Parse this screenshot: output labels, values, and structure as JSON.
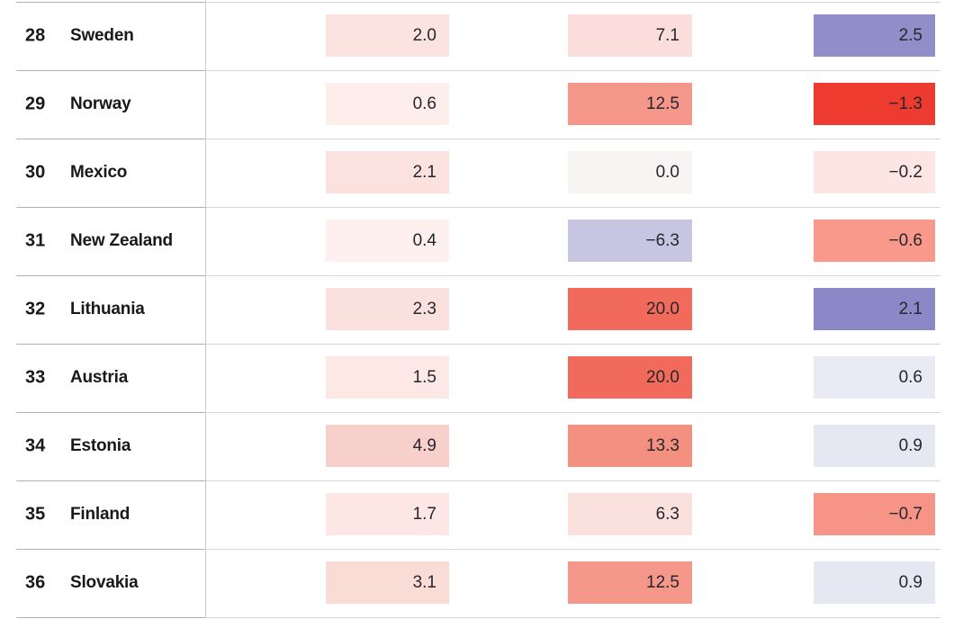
{
  "chart_data": {
    "type": "heatmap",
    "title": "",
    "note_columns": [
      "",
      "",
      ""
    ],
    "rows": [
      {
        "rank": 28,
        "country": "Sweden",
        "values": [
          2.0,
          7.1,
          2.5
        ]
      },
      {
        "rank": 29,
        "country": "Norway",
        "values": [
          0.6,
          12.5,
          -1.3
        ]
      },
      {
        "rank": 30,
        "country": "Mexico",
        "values": [
          2.1,
          0.0,
          -0.2
        ]
      },
      {
        "rank": 31,
        "country": "New Zealand",
        "values": [
          0.4,
          -6.3,
          -0.6
        ]
      },
      {
        "rank": 32,
        "country": "Lithuania",
        "values": [
          2.3,
          20.0,
          2.1
        ]
      },
      {
        "rank": 33,
        "country": "Austria",
        "values": [
          1.5,
          20.0,
          0.6
        ]
      },
      {
        "rank": 34,
        "country": "Estonia",
        "values": [
          4.9,
          13.3,
          0.9
        ]
      },
      {
        "rank": 35,
        "country": "Finland",
        "values": [
          1.7,
          6.3,
          -0.7
        ]
      },
      {
        "rank": 36,
        "country": "Slovakia",
        "values": [
          3.1,
          12.5,
          0.9
        ]
      }
    ],
    "legend_position": "none",
    "grid": "horizontal-hairlines"
  },
  "table": {
    "rows": [
      {
        "rank": "28",
        "country": "Sweden",
        "cells": [
          {
            "value": "2.0",
            "bg": "#fbe3e0"
          },
          {
            "value": "7.1",
            "bg": "#fbdedb"
          },
          {
            "value": "2.5",
            "bg": "#918dc9"
          }
        ]
      },
      {
        "rank": "29",
        "country": "Norway",
        "cells": [
          {
            "value": "0.6",
            "bg": "#fdeeec"
          },
          {
            "value": "12.5",
            "bg": "#f5978b"
          },
          {
            "value": "−1.3",
            "bg": "#ee3b30"
          }
        ]
      },
      {
        "rank": "30",
        "country": "Mexico",
        "cells": [
          {
            "value": "2.1",
            "bg": "#fbe2df"
          },
          {
            "value": "0.0",
            "bg": "#f7f5f3"
          },
          {
            "value": "−0.2",
            "bg": "#fce5e2"
          }
        ]
      },
      {
        "rank": "31",
        "country": "New Zealand",
        "cells": [
          {
            "value": "0.4",
            "bg": "#fdf0ee"
          },
          {
            "value": "−6.3",
            "bg": "#c8c5e3"
          },
          {
            "value": "−0.6",
            "bg": "#f8998c"
          }
        ]
      },
      {
        "rank": "32",
        "country": "Lithuania",
        "cells": [
          {
            "value": "2.3",
            "bg": "#fbe1de"
          },
          {
            "value": "20.0",
            "bg": "#f26a5b"
          },
          {
            "value": "2.1",
            "bg": "#8c87c6"
          }
        ]
      },
      {
        "rank": "33",
        "country": "Austria",
        "cells": [
          {
            "value": "1.5",
            "bg": "#fce8e5"
          },
          {
            "value": "20.0",
            "bg": "#f26a5b"
          },
          {
            "value": "0.6",
            "bg": "#eaeaf5"
          }
        ]
      },
      {
        "rank": "34",
        "country": "Estonia",
        "cells": [
          {
            "value": "4.9",
            "bg": "#f8d0cb"
          },
          {
            "value": "13.3",
            "bg": "#f39080"
          },
          {
            "value": "0.9",
            "bg": "#e5e7f3"
          }
        ]
      },
      {
        "rank": "35",
        "country": "Finland",
        "cells": [
          {
            "value": "1.7",
            "bg": "#fce7e4"
          },
          {
            "value": "6.3",
            "bg": "#fbe1de"
          },
          {
            "value": "−0.7",
            "bg": "#f79488"
          }
        ]
      },
      {
        "rank": "36",
        "country": "Slovakia",
        "cells": [
          {
            "value": "3.1",
            "bg": "#fadcd7"
          },
          {
            "value": "12.5",
            "bg": "#f5978b"
          },
          {
            "value": "0.9",
            "bg": "#e5e7f3"
          }
        ]
      }
    ]
  },
  "colors": {
    "hairline_left": "#b2b2b2",
    "hairline_right": "#d6d6d6",
    "column_divider": "#c9c9c9",
    "text": "#191919",
    "cell_text": "#27262e",
    "strong_red": "#ee3b30",
    "strong_purple": "#918dc9",
    "background": "#ffffff"
  }
}
